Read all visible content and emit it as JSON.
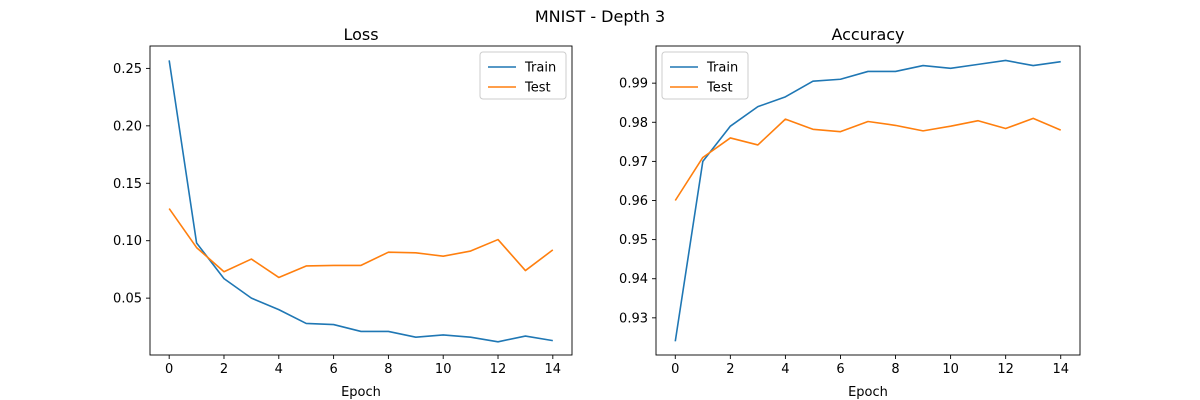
{
  "figure": {
    "suptitle": "MNIST - Depth 3"
  },
  "colors": {
    "train": "#1f77b4",
    "test": "#ff7f0e"
  },
  "chart_data": [
    {
      "type": "line",
      "title": "Loss",
      "xlabel": "Epoch",
      "ylabel": "",
      "x": [
        0,
        1,
        2,
        3,
        4,
        5,
        6,
        7,
        8,
        9,
        10,
        11,
        12,
        13,
        14
      ],
      "xlim": [
        -0.7,
        14.7
      ],
      "ylim": [
        0.0005,
        0.2695
      ],
      "xticks": [
        0,
        2,
        4,
        6,
        8,
        10,
        12,
        14
      ],
      "yticks": [
        0.05,
        0.1,
        0.15,
        0.2,
        0.25
      ],
      "ytick_labels": [
        "0.05",
        "0.10",
        "0.15",
        "0.20",
        "0.25"
      ],
      "legend_position": "upper right",
      "grid": false,
      "series": [
        {
          "name": "Train",
          "values": [
            0.257,
            0.098,
            0.067,
            0.05,
            0.04,
            0.028,
            0.027,
            0.021,
            0.021,
            0.016,
            0.018,
            0.016,
            0.012,
            0.017,
            0.013
          ]
        },
        {
          "name": "Test",
          "values": [
            0.128,
            0.094,
            0.073,
            0.084,
            0.068,
            0.078,
            0.0785,
            0.0785,
            0.09,
            0.0895,
            0.0865,
            0.091,
            0.101,
            0.074,
            0.092
          ]
        }
      ]
    },
    {
      "type": "line",
      "title": "Accuracy",
      "xlabel": "Epoch",
      "ylabel": "",
      "x": [
        0,
        1,
        2,
        3,
        4,
        5,
        6,
        7,
        8,
        9,
        10,
        11,
        12,
        13,
        14
      ],
      "xlim": [
        -0.7,
        14.7
      ],
      "ylim": [
        0.9205,
        0.9995
      ],
      "xticks": [
        0,
        2,
        4,
        6,
        8,
        10,
        12,
        14
      ],
      "yticks": [
        0.93,
        0.94,
        0.95,
        0.96,
        0.97,
        0.98,
        0.99
      ],
      "ytick_labels": [
        "0.93",
        "0.94",
        "0.95",
        "0.96",
        "0.97",
        "0.98",
        "0.99"
      ],
      "legend_position": "upper left",
      "grid": false,
      "series": [
        {
          "name": "Train",
          "values": [
            0.924,
            0.97,
            0.979,
            0.984,
            0.9865,
            0.9905,
            0.991,
            0.993,
            0.993,
            0.9945,
            0.9938,
            0.9948,
            0.9958,
            0.9945,
            0.9955
          ]
        },
        {
          "name": "Test",
          "values": [
            0.96,
            0.971,
            0.976,
            0.9742,
            0.9808,
            0.9782,
            0.9776,
            0.9802,
            0.9792,
            0.9778,
            0.979,
            0.9804,
            0.9784,
            0.981,
            0.978
          ]
        }
      ]
    }
  ]
}
